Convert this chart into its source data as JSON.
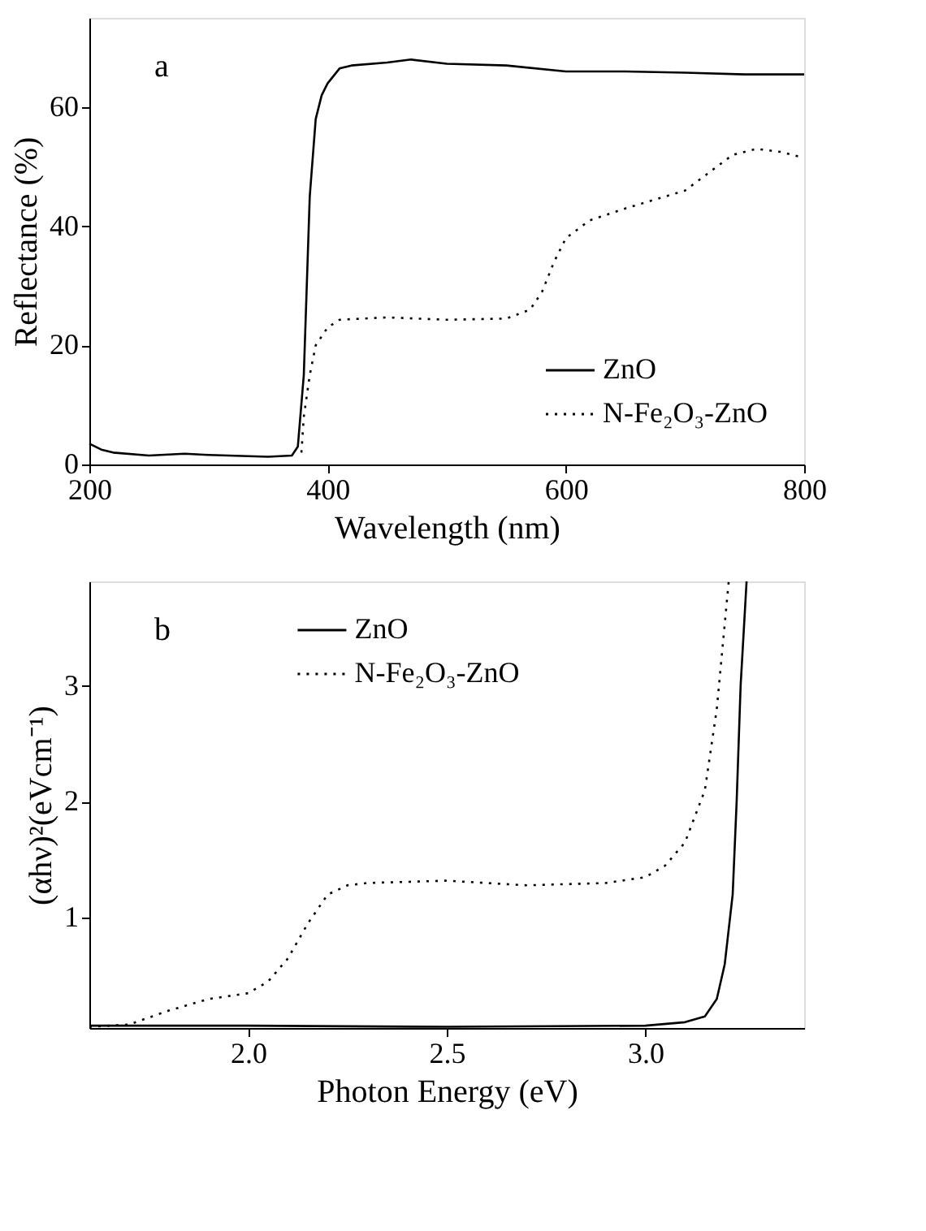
{
  "chart_data": [
    {
      "type": "line",
      "xlabel": "Wavelength (nm)",
      "ylabel": "Reflectance (%)",
      "annotations": [
        "a"
      ],
      "xlim": [
        200,
        800
      ],
      "ylim": [
        0,
        75
      ],
      "xticks": [
        200,
        400,
        600,
        800
      ],
      "yticks": [
        0,
        20,
        40,
        60
      ],
      "legend": "bottom right",
      "grid": false,
      "series": [
        {
          "name": "ZnO",
          "color": "#000000",
          "line_style": "solid",
          "x": [
            200,
            210,
            220,
            250,
            280,
            300,
            350,
            370,
            375,
            380,
            385,
            390,
            395,
            400,
            410,
            420,
            450,
            470,
            500,
            550,
            600,
            650,
            700,
            750,
            800
          ],
          "values": [
            3.5,
            2.5,
            2,
            1.5,
            1.8,
            1.6,
            1.3,
            1.5,
            3,
            15,
            45,
            58,
            62,
            64,
            66.5,
            67,
            67.5,
            68,
            67.3,
            67,
            66,
            66,
            65.8,
            65.5,
            65.5
          ]
        },
        {
          "name": "N-Fe₂O₃-ZnO",
          "color": "#000000",
          "line_style": "dotted",
          "x": [
            378,
            380,
            385,
            390,
            400,
            410,
            450,
            500,
            550,
            570,
            580,
            590,
            600,
            620,
            650,
            700,
            720,
            740,
            760,
            780,
            800
          ],
          "values": [
            2,
            8,
            15,
            20,
            23,
            24.3,
            24.7,
            24.3,
            24.5,
            26,
            29,
            34,
            38,
            41,
            43,
            46,
            49,
            52,
            53,
            52.5,
            51.5
          ]
        }
      ]
    },
    {
      "type": "line",
      "xlabel": "Photon Energy (eV)",
      "ylabel": "(αhν)²(eVcm⁻¹)",
      "annotations": [
        "b"
      ],
      "xlim": [
        1.6,
        3.4
      ],
      "ylim": [
        0.05,
        3.9
      ],
      "xticks": [
        {
          "value": 2,
          "label": "2.0"
        },
        2.5,
        {
          "value": 3,
          "label": "3.0"
        }
      ],
      "yticks": [
        1,
        2,
        3
      ],
      "legend": "top",
      "grid": false,
      "series": [
        {
          "name": "ZnO",
          "color": "#000000",
          "line_style": "solid",
          "x": [
            1.6,
            2.0,
            2.5,
            3.0,
            3.1,
            3.15,
            3.18,
            3.2,
            3.22,
            3.23,
            3.24,
            3.255
          ],
          "values": [
            0.07,
            0.07,
            0.06,
            0.07,
            0.1,
            0.15,
            0.3,
            0.6,
            1.2,
            2,
            3,
            3.9
          ]
        },
        {
          "name": "N-Fe₂O₃-ZnO",
          "color": "#000000",
          "line_style": "dotted",
          "x": [
            1.6,
            1.7,
            1.8,
            1.9,
            2.0,
            2.05,
            2.1,
            2.15,
            2.2,
            2.25,
            2.3,
            2.5,
            2.7,
            2.9,
            3.0,
            3.05,
            3.1,
            3.15,
            3.18,
            3.21
          ],
          "values": [
            0.06,
            0.08,
            0.2,
            0.3,
            0.35,
            0.45,
            0.65,
            0.95,
            1.2,
            1.28,
            1.3,
            1.32,
            1.28,
            1.3,
            1.35,
            1.45,
            1.65,
            2.1,
            2.8,
            3.9
          ]
        }
      ]
    }
  ]
}
